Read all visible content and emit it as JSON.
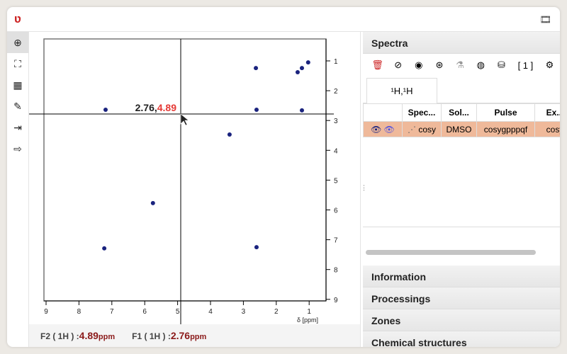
{
  "app": {
    "logo": "ʋ",
    "film_icon": "film-icon"
  },
  "toolbar": [
    "zoom-in-icon",
    "fullscreen-icon",
    "peak-picking-icon",
    "pen-icon",
    "import-icon",
    "export-icon"
  ],
  "plot": {
    "x_ticks": [
      9,
      8,
      7,
      6,
      5,
      4,
      3,
      2,
      1
    ],
    "y_ticks": [
      1,
      2,
      3,
      4,
      5,
      6,
      7,
      8,
      9
    ],
    "xlabel": "δ [ppm]",
    "cursor": {
      "x_label": "2.76",
      "y_label": "4.89"
    },
    "peak_color": "#1a237e",
    "peaks": [
      [
        2.62,
        1.24
      ],
      [
        1.22,
        1.24
      ],
      [
        1.03,
        1.05
      ],
      [
        1.35,
        1.38
      ],
      [
        7.19,
        2.64
      ],
      [
        2.6,
        2.64
      ],
      [
        1.22,
        2.66
      ],
      [
        3.42,
        3.47
      ],
      [
        5.75,
        5.77
      ],
      [
        7.23,
        7.29
      ],
      [
        2.6,
        7.25
      ]
    ],
    "xlim": [
      9.1,
      0.5
    ],
    "ylim": [
      0.5,
      9.1
    ]
  },
  "footer": {
    "f2_label": "F2 ( 1H ) :",
    "f2_value": "4.89",
    "f1_label": "F1 ( 1H ) :",
    "f1_value": "2.76",
    "unit": "ppm"
  },
  "panel": {
    "title": "Spectra",
    "toolbar_count": "[ 1 ]",
    "tab": "¹H,¹H",
    "columns": [
      "",
      "Spec...",
      "Sol...",
      "Pulse",
      "Ex..."
    ],
    "row": {
      "spectrum": "cosy",
      "solvent": "DMSO",
      "pulse": "cosygpppqf",
      "experiment": "cosy"
    },
    "sections": [
      "Information",
      "Processings",
      "Zones",
      "Chemical structures"
    ]
  }
}
